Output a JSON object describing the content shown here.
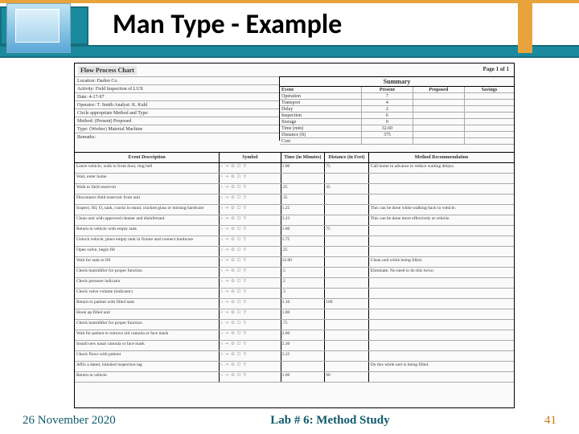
{
  "title": "Man Type - Example",
  "footer": {
    "date": "26 November 2020",
    "center": "Lab # 6: Method Study",
    "page": "41"
  },
  "chart": {
    "heading": "Flow Process Chart",
    "page_label": "Page 1 of 1",
    "meta": {
      "location": "Location: Darlen Co.",
      "activity": "Activity: Field Inspection of LUX",
      "date": "Date: 4-17-97",
      "operator": "Operator: T. Smith    Analyst: K. Kuhl",
      "circle": "Circle appropriate Method and Type:",
      "method": "Method:  (Present)   Proposed",
      "type": "Type:   (Worker)   Material   Machine",
      "remarks": "Remarks:"
    },
    "summary_header": "Summary",
    "summary_cols": [
      "Event",
      "Present",
      "Proposed",
      "Savings"
    ],
    "summary_rows": [
      {
        "ev": "Operation",
        "present": "7"
      },
      {
        "ev": "Transport",
        "present": "4"
      },
      {
        "ev": "Delay",
        "present": "2"
      },
      {
        "ev": "Inspection",
        "present": "6"
      },
      {
        "ev": "Storage",
        "present": "0"
      },
      {
        "ev": "Time (min)",
        "present": "32.60"
      },
      {
        "ev": "Distance (ft)",
        "present": "375"
      },
      {
        "ev": "Cost",
        "present": ""
      }
    ],
    "event_cols": [
      "Event Description",
      "Symbol",
      "Time (in Minutes)",
      "Distance (in Feet)",
      "Method Recommendation"
    ],
    "symbol_glyph": "○ ⇨ D ☐ ▽",
    "events": [
      {
        "desc": "Leave vehicle, walk to front door, ring bell",
        "time": "1.00",
        "dist": "75",
        "rec": "Call home in advance to reduce waiting delays."
      },
      {
        "desc": "Wait, enter home",
        "time": "",
        "dist": "",
        "rec": ""
      },
      {
        "desc": "Walk to field reservoir",
        "time": ".25",
        "dist": "35",
        "rec": ""
      },
      {
        "desc": "Disconnect field reservoir from unit",
        "time": ".35",
        "dist": "",
        "rec": ""
      },
      {
        "desc": "Inspect, fill, O₂ tank, cracks in stand, cracked glass or missing hardware",
        "time": "1.25",
        "dist": "",
        "rec": "This can be done while walking back to vehicle."
      },
      {
        "desc": "Clean unit with approved cleaner and disinfectant",
        "time": "3.23",
        "dist": "",
        "rec": "This can be done more effectively at vehicle."
      },
      {
        "desc": "Return to vehicle with empty tank",
        "time": "1.00",
        "dist": "75",
        "rec": ""
      },
      {
        "desc": "Unlock vehicle, place empty tank in fixture and connect hardware",
        "time": "1.75",
        "dist": "",
        "rec": ""
      },
      {
        "desc": "Open valve, begin fill",
        "time": ".25",
        "dist": "",
        "rec": ""
      },
      {
        "desc": "Wait for tank to fill",
        "time": "12.00",
        "dist": "",
        "rec": "Clean unit while being filled."
      },
      {
        "desc": "Check humidifier for proper function",
        "time": ".5",
        "dist": "",
        "rec": "Eliminate. No need to do this twice."
      },
      {
        "desc": "Check pressure indicator",
        "time": ".2",
        "dist": "",
        "rec": ""
      },
      {
        "desc": "Check valve volume (indicator)",
        "time": ".3",
        "dist": "",
        "rec": ""
      },
      {
        "desc": "Return to patient with filled tank",
        "time": "1.10",
        "dist": "100",
        "rec": ""
      },
      {
        "desc": "Hook up filled unit",
        "time": "1.00",
        "dist": "",
        "rec": ""
      },
      {
        "desc": "Check humidifier for proper function",
        "time": ".75",
        "dist": "",
        "rec": ""
      },
      {
        "desc": "Wait for patient to remove old cannula or face mask",
        "time": "2.00",
        "dist": "",
        "rec": ""
      },
      {
        "desc": "Install new nasal cannula or face mask",
        "time": "2.30",
        "dist": "",
        "rec": ""
      },
      {
        "desc": "Check flows with patient",
        "time": "2.25",
        "dist": "",
        "rec": ""
      },
      {
        "desc": "Affix a dated, initialed inspection tag",
        "time": "",
        "dist": "",
        "rec": "Do this while unit is being filled."
      },
      {
        "desc": "Return to vehicle",
        "time": "1.00",
        "dist": "90",
        "rec": ""
      }
    ]
  }
}
